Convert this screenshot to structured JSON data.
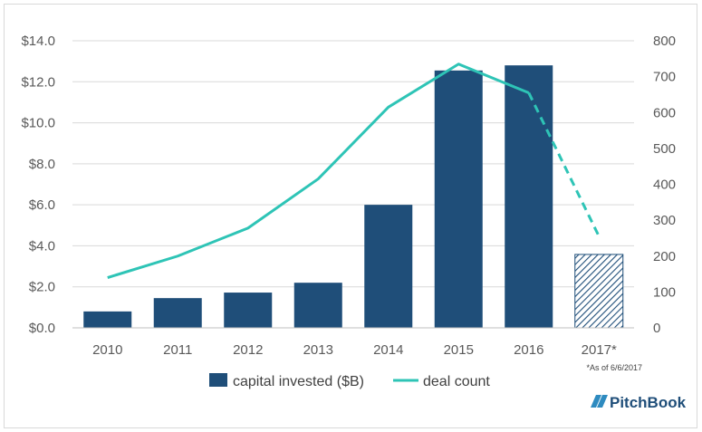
{
  "chart_data": {
    "type": "bar",
    "categories": [
      "2010",
      "2011",
      "2012",
      "2013",
      "2014",
      "2015",
      "2016",
      "2017*"
    ],
    "series": [
      {
        "name": "capital invested ($B)",
        "axis": "left",
        "kind": "bar",
        "color": "#1f4e79",
        "values": [
          0.8,
          1.45,
          1.72,
          2.2,
          6.0,
          12.55,
          12.8,
          3.58
        ],
        "partial_last": true
      },
      {
        "name": "deal count",
        "axis": "right",
        "kind": "line",
        "color": "#2ec4b6",
        "values": [
          140,
          200,
          278,
          415,
          615,
          735,
          655,
          255
        ],
        "dashed_last_segment": true
      }
    ],
    "y_left": {
      "ylim": [
        0,
        14
      ],
      "ticks": [
        0,
        2,
        4,
        6,
        8,
        10,
        12,
        14
      ],
      "tick_labels": [
        "$0.0",
        "$2.0",
        "$4.0",
        "$6.0",
        "$8.0",
        "$10.0",
        "$12.0",
        "$14.0"
      ]
    },
    "y_right": {
      "ylim": [
        0,
        800
      ],
      "ticks": [
        0,
        100,
        200,
        300,
        400,
        500,
        600,
        700,
        800
      ],
      "tick_labels": [
        "0",
        "100",
        "200",
        "300",
        "400",
        "500",
        "600",
        "700",
        "800"
      ]
    },
    "grid": true,
    "legend_position": "bottom",
    "footnote": "*As of 6/6/2017",
    "brand": "PitchBook"
  }
}
